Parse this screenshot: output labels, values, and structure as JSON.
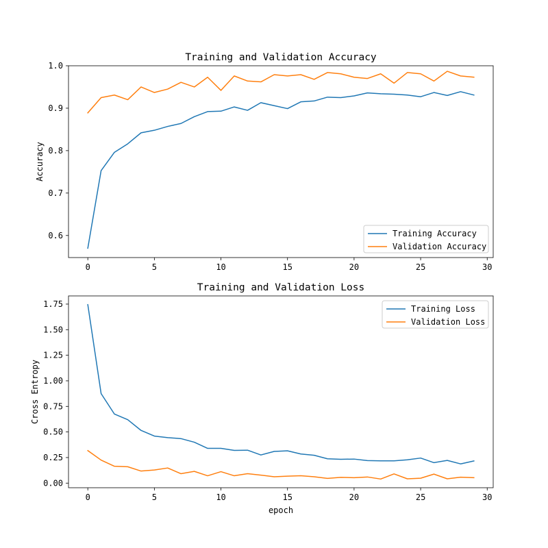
{
  "chart_data": [
    {
      "type": "line",
      "title": "Training and Validation Accuracy",
      "xlabel": "",
      "ylabel": "Accuracy",
      "xlim": [
        -1.45,
        30.45
      ],
      "ylim": [
        0.548,
        1.0
      ],
      "xticks": [
        0,
        5,
        10,
        15,
        20,
        25,
        30
      ],
      "xtick_labels": [
        "0",
        "5",
        "10",
        "15",
        "20",
        "25",
        "30"
      ],
      "yticks": [
        0.6,
        0.7,
        0.8,
        0.9,
        1.0
      ],
      "ytick_labels": [
        "0.6",
        "0.7",
        "0.8",
        "0.9",
        "1.0"
      ],
      "legend_position": "lower-right",
      "x": [
        0,
        1,
        2,
        3,
        4,
        5,
        6,
        7,
        8,
        9,
        10,
        11,
        12,
        13,
        14,
        15,
        16,
        17,
        18,
        19,
        20,
        21,
        22,
        23,
        24,
        25,
        26,
        27,
        28,
        29
      ],
      "series": [
        {
          "name": "Training Accuracy",
          "color": "#1f77b4",
          "values": [
            0.57,
            0.753,
            0.796,
            0.816,
            0.842,
            0.848,
            0.857,
            0.864,
            0.88,
            0.892,
            0.893,
            0.903,
            0.895,
            0.913,
            0.906,
            0.899,
            0.915,
            0.917,
            0.926,
            0.925,
            0.929,
            0.936,
            0.934,
            0.933,
            0.931,
            0.927,
            0.937,
            0.93,
            0.939,
            0.931
          ]
        },
        {
          "name": "Validation Accuracy",
          "color": "#ff7f0e",
          "values": [
            0.889,
            0.925,
            0.931,
            0.92,
            0.95,
            0.937,
            0.945,
            0.961,
            0.95,
            0.973,
            0.942,
            0.976,
            0.964,
            0.962,
            0.979,
            0.976,
            0.979,
            0.968,
            0.984,
            0.981,
            0.973,
            0.97,
            0.981,
            0.959,
            0.984,
            0.981,
            0.964,
            0.987,
            0.976,
            0.973
          ]
        }
      ]
    },
    {
      "type": "line",
      "title": "Training and Validation Loss",
      "xlabel": "epoch",
      "ylabel": "Cross Entropy",
      "xlim": [
        -1.45,
        30.45
      ],
      "ylim": [
        -0.045,
        1.83
      ],
      "xticks": [
        0,
        5,
        10,
        15,
        20,
        25,
        30
      ],
      "xtick_labels": [
        "0",
        "5",
        "10",
        "15",
        "20",
        "25",
        "30"
      ],
      "yticks": [
        0.0,
        0.25,
        0.5,
        0.75,
        1.0,
        1.25,
        1.5,
        1.75
      ],
      "ytick_labels": [
        "0.00",
        "0.25",
        "0.50",
        "0.75",
        "1.00",
        "1.25",
        "1.50",
        "1.75"
      ],
      "legend_position": "upper-right",
      "x": [
        0,
        1,
        2,
        3,
        4,
        5,
        6,
        7,
        8,
        9,
        10,
        11,
        12,
        13,
        14,
        15,
        16,
        17,
        18,
        19,
        20,
        21,
        22,
        23,
        24,
        25,
        26,
        27,
        28,
        29
      ],
      "series": [
        {
          "name": "Training Loss",
          "color": "#1f77b4",
          "values": [
            1.745,
            0.875,
            0.675,
            0.62,
            0.515,
            0.46,
            0.445,
            0.435,
            0.4,
            0.34,
            0.34,
            0.32,
            0.322,
            0.275,
            0.31,
            0.316,
            0.285,
            0.272,
            0.238,
            0.233,
            0.235,
            0.22,
            0.218,
            0.218,
            0.228,
            0.245,
            0.2,
            0.222,
            0.188,
            0.217
          ]
        },
        {
          "name": "Validation Loss",
          "color": "#ff7f0e",
          "values": [
            0.318,
            0.225,
            0.165,
            0.16,
            0.118,
            0.128,
            0.148,
            0.092,
            0.115,
            0.072,
            0.112,
            0.072,
            0.092,
            0.078,
            0.062,
            0.068,
            0.072,
            0.062,
            0.046,
            0.056,
            0.053,
            0.06,
            0.04,
            0.09,
            0.042,
            0.048,
            0.088,
            0.042,
            0.058,
            0.053
          ]
        }
      ]
    }
  ]
}
